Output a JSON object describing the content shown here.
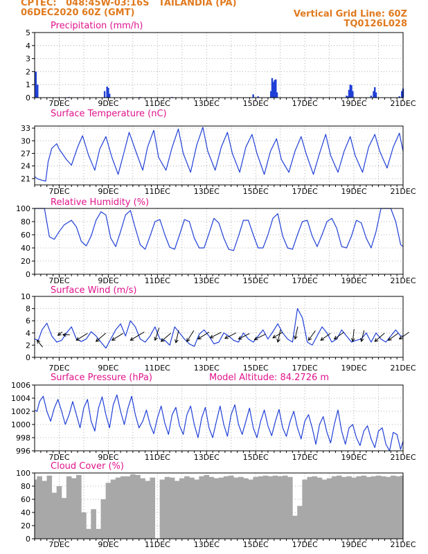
{
  "header": {
    "left_line1": "CPTEC:   048:45W-03:16S   TAILANDIA (PA)",
    "left_line2": "06DEC2020 60Z (GMT)",
    "right_line1": "Vertical Grid Line: 60Z",
    "right_line2": "TQ0126L028"
  },
  "colors": {
    "header": "#e07a1f",
    "title": "#e0138c",
    "line": "#1f3fd6",
    "bar": "#1f3fd6",
    "cloud": "#a8a8a8",
    "arrow": "#000000",
    "grid": "#9a9a9a"
  },
  "x_tick_labels": [
    "7DEC",
    "9DEC",
    "11DEC",
    "13DEC",
    "15DEC",
    "17DEC",
    "19DEC",
    "21DEC"
  ],
  "chart_data": [
    {
      "type": "bar",
      "title": "Precipitation (mm/h)",
      "ylim": [
        0,
        5
      ],
      "yticks": [
        "0",
        "1",
        "2",
        "3",
        "4",
        "5"
      ],
      "x_range": [
        6.0,
        21.0
      ],
      "bars": [
        [
          6.05,
          2.0
        ],
        [
          6.1,
          0.5
        ],
        [
          6.12,
          1.0
        ],
        [
          7.4,
          0.05
        ],
        [
          8.85,
          0.5
        ],
        [
          8.95,
          0.85
        ],
        [
          9.0,
          0.75
        ],
        [
          9.05,
          0.3
        ],
        [
          10.3,
          0.05
        ],
        [
          11.6,
          0.05
        ],
        [
          14.9,
          0.25
        ],
        [
          15.1,
          0.1
        ],
        [
          15.62,
          0.5
        ],
        [
          15.67,
          1.5
        ],
        [
          15.72,
          1.2
        ],
        [
          15.77,
          1.35
        ],
        [
          15.82,
          1.4
        ],
        [
          15.87,
          0.4
        ],
        [
          17.2,
          0.05
        ],
        [
          18.7,
          0.15
        ],
        [
          18.75,
          0.1
        ],
        [
          18.8,
          0.6
        ],
        [
          18.85,
          1.0
        ],
        [
          18.9,
          0.95
        ],
        [
          18.95,
          0.5
        ],
        [
          19.7,
          0.15
        ],
        [
          19.8,
          0.5
        ],
        [
          19.85,
          0.8
        ],
        [
          19.9,
          0.4
        ],
        [
          20.85,
          0.1
        ],
        [
          20.95,
          0.5
        ],
        [
          21.0,
          0.7
        ]
      ]
    },
    {
      "type": "line",
      "title": "Surface Temperature (nC)",
      "ylim": [
        19.5,
        33.5
      ],
      "yticks": [
        "21",
        "24",
        "27",
        "30",
        "33"
      ],
      "x": [
        6.0,
        6.1,
        6.3,
        6.45,
        6.55,
        6.7,
        6.9,
        7.0,
        7.3,
        7.5,
        7.75,
        7.95,
        8.2,
        8.45,
        8.65,
        8.9,
        9.15,
        9.4,
        9.65,
        9.85,
        10.15,
        10.4,
        10.6,
        10.85,
        11.05,
        11.35,
        11.6,
        11.85,
        12.05,
        12.35,
        12.6,
        12.85,
        13.05,
        13.35,
        13.6,
        13.85,
        14.05,
        14.35,
        14.6,
        14.85,
        15.05,
        15.35,
        15.6,
        15.85,
        16.05,
        16.35,
        16.6,
        16.85,
        17.05,
        17.35,
        17.6,
        17.85,
        18.05,
        18.35,
        18.6,
        18.85,
        19.05,
        19.35,
        19.6,
        19.85,
        20.05,
        20.35,
        20.6,
        20.85,
        21.0
      ],
      "y": [
        21.5,
        21.0,
        20.6,
        20.4,
        25.0,
        28.2,
        29.3,
        28.0,
        25.5,
        24.2,
        28.5,
        31.2,
        26.5,
        23.0,
        28.0,
        31.0,
        26.0,
        22.0,
        27.5,
        32.0,
        27.0,
        23.0,
        28.5,
        32.5,
        26.0,
        23.0,
        28.5,
        32.8,
        27.0,
        22.5,
        29.0,
        33.2,
        27.5,
        23.0,
        28.5,
        32.0,
        27.0,
        22.5,
        28.5,
        31.5,
        27.0,
        22.0,
        27.5,
        30.5,
        25.5,
        22.5,
        27.5,
        31.0,
        27.0,
        22.0,
        27.0,
        31.5,
        26.5,
        22.5,
        27.5,
        31.0,
        26.5,
        22.5,
        28.5,
        31.5,
        27.5,
        23.5,
        28.5,
        31.8,
        27.5
      ]
    },
    {
      "type": "line",
      "title": "Relative Humidity (%)",
      "ylim": [
        0,
        100
      ],
      "yticks": [
        "0",
        "20",
        "40",
        "60",
        "80",
        "100"
      ],
      "x": [
        6.0,
        6.2,
        6.4,
        6.6,
        6.8,
        7.0,
        7.2,
        7.5,
        7.7,
        7.9,
        8.1,
        8.3,
        8.5,
        8.7,
        8.9,
        9.1,
        9.3,
        9.5,
        9.7,
        9.9,
        10.1,
        10.3,
        10.5,
        10.7,
        10.9,
        11.1,
        11.3,
        11.5,
        11.7,
        11.9,
        12.1,
        12.3,
        12.5,
        12.7,
        12.9,
        13.1,
        13.3,
        13.5,
        13.7,
        13.9,
        14.1,
        14.3,
        14.5,
        14.7,
        14.9,
        15.1,
        15.3,
        15.5,
        15.7,
        15.9,
        16.1,
        16.3,
        16.5,
        16.7,
        16.9,
        17.1,
        17.3,
        17.5,
        17.7,
        17.9,
        18.1,
        18.3,
        18.5,
        18.7,
        18.9,
        19.1,
        19.3,
        19.5,
        19.7,
        19.9,
        20.1,
        20.3,
        20.5,
        20.7,
        20.9,
        21.0
      ],
      "y": [
        100,
        100,
        100,
        57,
        53,
        65,
        75,
        82,
        72,
        50,
        43,
        58,
        82,
        95,
        90,
        55,
        42,
        65,
        90,
        97,
        70,
        45,
        38,
        58,
        80,
        83,
        60,
        41,
        38,
        60,
        83,
        80,
        55,
        40,
        40,
        62,
        85,
        78,
        55,
        38,
        36,
        58,
        82,
        82,
        60,
        40,
        40,
        60,
        85,
        92,
        58,
        40,
        38,
        60,
        80,
        82,
        58,
        42,
        60,
        80,
        85,
        70,
        42,
        40,
        58,
        82,
        78,
        55,
        40,
        65,
        100,
        100,
        100,
        80,
        45,
        42
      ]
    },
    {
      "type": "line",
      "title": "Surface Wind (m/s)",
      "ylim": [
        0,
        10
      ],
      "yticks": [
        "0",
        "2",
        "4",
        "6",
        "8",
        "10"
      ],
      "x": [
        6.0,
        6.15,
        6.3,
        6.5,
        6.7,
        6.9,
        7.1,
        7.3,
        7.5,
        7.7,
        7.9,
        8.1,
        8.3,
        8.5,
        8.7,
        8.9,
        9.1,
        9.3,
        9.5,
        9.7,
        9.9,
        10.1,
        10.3,
        10.5,
        10.7,
        10.9,
        11.1,
        11.3,
        11.5,
        11.7,
        11.9,
        12.1,
        12.3,
        12.5,
        12.7,
        12.9,
        13.1,
        13.3,
        13.5,
        13.7,
        13.9,
        14.1,
        14.3,
        14.5,
        14.7,
        14.9,
        15.1,
        15.3,
        15.5,
        15.7,
        15.9,
        16.1,
        16.3,
        16.5,
        16.7,
        16.9,
        17.1,
        17.3,
        17.5,
        17.7,
        17.9,
        18.1,
        18.3,
        18.5,
        18.7,
        18.9,
        19.1,
        19.3,
        19.5,
        19.7,
        19.9,
        20.1,
        20.3,
        20.5,
        20.7,
        20.9,
        21.0
      ],
      "y": [
        3.0,
        2.8,
        4.5,
        5.6,
        3.5,
        2.5,
        2.8,
        4.0,
        5.0,
        3.0,
        2.6,
        3.0,
        4.2,
        3.5,
        2.5,
        1.5,
        3.0,
        4.5,
        5.5,
        3.5,
        6.0,
        5.0,
        3.0,
        2.5,
        3.5,
        5.0,
        3.0,
        2.8,
        2.0,
        5.0,
        4.0,
        3.0,
        2.2,
        1.8,
        3.8,
        4.5,
        3.5,
        2.2,
        2.5,
        4.0,
        3.5,
        2.8,
        2.5,
        4.0,
        3.0,
        2.5,
        3.5,
        4.5,
        3.0,
        4.2,
        5.5,
        4.0,
        3.0,
        2.5,
        8.0,
        6.5,
        2.5,
        2.0,
        3.5,
        5.0,
        4.0,
        2.5,
        3.0,
        4.5,
        3.5,
        2.5,
        2.8,
        3.0,
        4.0,
        2.5,
        4.0,
        3.0,
        2.5,
        3.5,
        4.5,
        3.5,
        3.5
      ],
      "arrows": [
        {
          "x": 6.1,
          "y": 2.8,
          "dx": 8,
          "dy": 10
        },
        {
          "x": 6.95,
          "y": 3.6,
          "dx": 6,
          "dy": -5
        },
        {
          "x": 7.15,
          "y": 3.7,
          "dx": 10,
          "dy": 0
        },
        {
          "x": 7.7,
          "y": 2.8,
          "dx": 16,
          "dy": -10
        },
        {
          "x": 8.5,
          "y": 2.6,
          "dx": 14,
          "dy": -12
        },
        {
          "x": 9.15,
          "y": 2.8,
          "dx": 16,
          "dy": -10
        },
        {
          "x": 9.9,
          "y": 2.8,
          "dx": 20,
          "dy": -12
        },
        {
          "x": 10.9,
          "y": 2.8,
          "dx": 6,
          "dy": -18
        },
        {
          "x": 11.15,
          "y": 2.6,
          "dx": 14,
          "dy": -12
        },
        {
          "x": 11.75,
          "y": 2.4,
          "dx": 4,
          "dy": -18
        },
        {
          "x": 12.2,
          "y": 2.6,
          "dx": 10,
          "dy": -16
        },
        {
          "x": 12.65,
          "y": 3.0,
          "dx": 16,
          "dy": -10
        },
        {
          "x": 13.15,
          "y": 3.2,
          "dx": 16,
          "dy": -8
        },
        {
          "x": 13.75,
          "y": 3.1,
          "dx": 16,
          "dy": -8
        },
        {
          "x": 14.3,
          "y": 3.0,
          "dx": 16,
          "dy": -8
        },
        {
          "x": 14.95,
          "y": 2.9,
          "dx": 16,
          "dy": -8
        },
        {
          "x": 15.7,
          "y": 3.2,
          "dx": 14,
          "dy": -8
        },
        {
          "x": 15.9,
          "y": 2.5,
          "dx": 4,
          "dy": -18
        },
        {
          "x": 16.6,
          "y": 3.0,
          "dx": 4,
          "dy": -18
        },
        {
          "x": 17.15,
          "y": 2.8,
          "dx": 10,
          "dy": -14
        },
        {
          "x": 17.65,
          "y": 2.8,
          "dx": 14,
          "dy": -10
        },
        {
          "x": 18.2,
          "y": 3.0,
          "dx": 14,
          "dy": -10
        },
        {
          "x": 18.95,
          "y": 2.6,
          "dx": 2,
          "dy": -18
        },
        {
          "x": 19.3,
          "y": 2.6,
          "dx": 4,
          "dy": -16
        },
        {
          "x": 19.85,
          "y": 2.6,
          "dx": 14,
          "dy": -12
        },
        {
          "x": 20.4,
          "y": 2.8,
          "dx": 14,
          "dy": -10
        },
        {
          "x": 20.85,
          "y": 3.0,
          "dx": 14,
          "dy": -10
        }
      ]
    },
    {
      "type": "line",
      "title": "Surface Pressure (hPa)",
      "annotation": "Model Altitude: 84.2726 m",
      "ylim": [
        996,
        1006
      ],
      "yticks": [
        "996",
        "998",
        "1000",
        "1002",
        "1004",
        "1006"
      ],
      "x": [
        6.0,
        6.1,
        6.2,
        6.35,
        6.5,
        6.65,
        6.8,
        6.95,
        7.1,
        7.25,
        7.4,
        7.55,
        7.7,
        7.85,
        8.0,
        8.15,
        8.3,
        8.45,
        8.6,
        8.75,
        8.9,
        9.05,
        9.2,
        9.35,
        9.5,
        9.65,
        9.8,
        9.95,
        10.1,
        10.25,
        10.4,
        10.55,
        10.7,
        10.85,
        11.0,
        11.15,
        11.3,
        11.45,
        11.6,
        11.75,
        11.9,
        12.05,
        12.2,
        12.35,
        12.5,
        12.65,
        12.8,
        12.95,
        13.1,
        13.25,
        13.4,
        13.55,
        13.7,
        13.85,
        14.0,
        14.15,
        14.3,
        14.45,
        14.6,
        14.75,
        14.9,
        15.05,
        15.2,
        15.35,
        15.5,
        15.65,
        15.8,
        15.95,
        16.1,
        16.25,
        16.4,
        16.55,
        16.7,
        16.85,
        17.0,
        17.15,
        17.3,
        17.45,
        17.6,
        17.75,
        17.9,
        18.05,
        18.2,
        18.35,
        18.5,
        18.65,
        18.8,
        18.95,
        19.1,
        19.25,
        19.4,
        19.55,
        19.7,
        19.85,
        20.0,
        20.15,
        20.3,
        20.45,
        20.6,
        20.75,
        20.9,
        21.0
      ],
      "y": [
        1002.2,
        1002.0,
        1003.5,
        1004.3,
        1002.0,
        1000.5,
        1002.5,
        1003.8,
        1002.0,
        1000.0,
        1001.5,
        1003.5,
        1001.5,
        999.5,
        1002.5,
        1003.8,
        1000.5,
        999.0,
        1002.5,
        1004.2,
        1001.5,
        999.5,
        1003.0,
        1004.5,
        1002.0,
        1000.0,
        1002.5,
        1004.3,
        1001.5,
        999.5,
        1000.5,
        1002.2,
        1000.0,
        998.6,
        1001.0,
        1002.8,
        1000.2,
        998.5,
        1001.5,
        1002.6,
        999.8,
        998.5,
        1001.5,
        1002.8,
        1000.0,
        998.0,
        1001.0,
        1002.6,
        999.5,
        998.0,
        1000.5,
        1002.8,
        1000.0,
        998.2,
        1001.5,
        1003.0,
        1000.0,
        998.5,
        1000.5,
        1002.5,
        999.5,
        998.0,
        1000.5,
        1002.2,
        999.8,
        998.3,
        1000.5,
        1002.3,
        999.5,
        998.2,
        1000.5,
        1002.0,
        999.5,
        997.8,
        1000.5,
        1001.5,
        999.5,
        997.0,
        1000.0,
        1001.2,
        998.8,
        997.2,
        1000.0,
        1002.2,
        999.0,
        997.0,
        999.5,
        1000.0,
        998.0,
        996.8,
        999.0,
        999.8,
        997.8,
        996.5,
        999.0,
        999.5,
        997.0,
        996.0,
        998.8,
        998.5,
        996.2,
        997.5
      ]
    },
    {
      "type": "bar",
      "title": "Cloud Cover (%)",
      "ylim": [
        0,
        100
      ],
      "yticks": [
        "0",
        "20",
        "40",
        "60",
        "80",
        "100"
      ],
      "x_range": [
        6.0,
        21.0
      ],
      "x": [
        6.0,
        6.2,
        6.4,
        6.6,
        6.8,
        7.0,
        7.2,
        7.4,
        7.6,
        7.8,
        8.0,
        8.2,
        8.4,
        8.6,
        8.8,
        9.0,
        9.2,
        9.4,
        9.6,
        9.8,
        10.0,
        10.2,
        10.4,
        10.6,
        10.8,
        11.0,
        11.2,
        11.4,
        11.6,
        11.8,
        12.0,
        12.2,
        12.4,
        12.6,
        12.8,
        13.0,
        13.2,
        13.4,
        13.6,
        13.8,
        14.0,
        14.2,
        14.4,
        14.6,
        14.8,
        15.0,
        15.2,
        15.4,
        15.6,
        15.8,
        16.0,
        16.2,
        16.4,
        16.6,
        16.8,
        17.0,
        17.2,
        17.4,
        17.6,
        17.8,
        18.0,
        18.2,
        18.4,
        18.6,
        18.8,
        19.0,
        19.2,
        19.4,
        19.6,
        19.8,
        20.0,
        20.2,
        20.4,
        20.6,
        20.8,
        21.0
      ],
      "y": [
        90,
        95,
        88,
        96,
        70,
        80,
        62,
        95,
        92,
        97,
        40,
        15,
        45,
        15,
        60,
        85,
        90,
        93,
        95,
        95,
        98,
        97,
        92,
        88,
        93,
        0,
        90,
        94,
        93,
        88,
        92,
        95,
        93,
        90,
        95,
        97,
        94,
        92,
        93,
        95,
        96,
        93,
        94,
        92,
        90,
        94,
        95,
        96,
        95,
        96,
        95,
        96,
        94,
        35,
        50,
        90,
        94,
        95,
        93,
        90,
        92,
        95,
        96,
        94,
        95,
        93,
        95,
        96,
        94,
        95,
        96,
        95,
        94,
        96,
        95,
        96
      ]
    }
  ]
}
